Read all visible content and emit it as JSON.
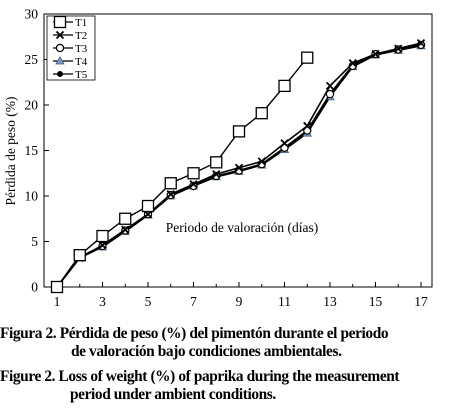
{
  "chart_data": {
    "type": "line",
    "xlabel": "Periodo de valoración (días)",
    "ylabel": "Pérdida de peso (%)",
    "xlim": [
      0.5,
      17.8
    ],
    "ylim": [
      0,
      30
    ],
    "xticks": [
      1,
      3,
      5,
      7,
      9,
      11,
      13,
      15,
      17
    ],
    "yticks": [
      0,
      5,
      10,
      15,
      20,
      25,
      30
    ],
    "grid": false,
    "legend_position": "top-left",
    "series": [
      {
        "name": "T1",
        "marker": "square",
        "x": [
          1,
          2,
          3,
          4,
          5,
          6,
          7,
          8,
          9,
          10,
          11,
          12
        ],
        "y": [
          0,
          3.5,
          5.6,
          7.5,
          8.9,
          11.4,
          12.5,
          13.7,
          17.1,
          19.1,
          22.1,
          25.2
        ]
      },
      {
        "name": "T2",
        "marker": "x",
        "x": [
          1,
          2,
          3,
          4,
          5,
          6,
          7,
          8,
          9,
          10,
          11,
          12,
          13,
          14,
          15,
          16,
          17
        ],
        "y": [
          0,
          3.2,
          4.6,
          6.3,
          8.0,
          10.2,
          11.3,
          12.4,
          13.1,
          13.8,
          15.8,
          17.7,
          22.1,
          24.6,
          25.6,
          26.2,
          26.8
        ]
      },
      {
        "name": "T3",
        "marker": "circle",
        "x": [
          1,
          2,
          3,
          4,
          5,
          6,
          7,
          8,
          9,
          10,
          11,
          12,
          13,
          14,
          15,
          16,
          17
        ],
        "y": [
          0,
          3.3,
          4.5,
          6.2,
          8.0,
          10.1,
          11.1,
          12.2,
          12.8,
          13.5,
          15.3,
          17.2,
          21.2,
          24.3,
          25.6,
          26.1,
          26.6
        ]
      },
      {
        "name": "T4",
        "marker": "triangle",
        "x": [
          1,
          2,
          3,
          4,
          5,
          6,
          7,
          8,
          9,
          10,
          11,
          12,
          13,
          14,
          15,
          16,
          17
        ],
        "y": [
          0,
          3.2,
          4.4,
          6.1,
          7.9,
          10.0,
          11.1,
          12.1,
          12.7,
          13.4,
          15.1,
          16.9,
          20.9,
          24.2,
          25.5,
          26.0,
          26.5
        ]
      },
      {
        "name": "T5",
        "marker": "dot",
        "x": [
          1,
          2,
          3,
          4,
          5,
          6,
          7,
          8,
          9,
          10,
          11,
          12,
          13,
          14,
          15,
          16,
          17
        ],
        "y": [
          0,
          3.3,
          4.5,
          6.2,
          8.0,
          10.1,
          11.2,
          12.2,
          12.8,
          13.5,
          15.3,
          17.1,
          21.2,
          24.4,
          25.6,
          26.1,
          26.7
        ]
      }
    ]
  },
  "caption": {
    "es_line1": "Figura 2. Pérdida de peso (%) del pimentón durante el periodo",
    "es_line2": "de valoración bajo condiciones ambientales.",
    "en_line1": "Figure 2. Loss of weight (%) of paprika during the measurement",
    "en_line2": "period under ambient conditions."
  }
}
